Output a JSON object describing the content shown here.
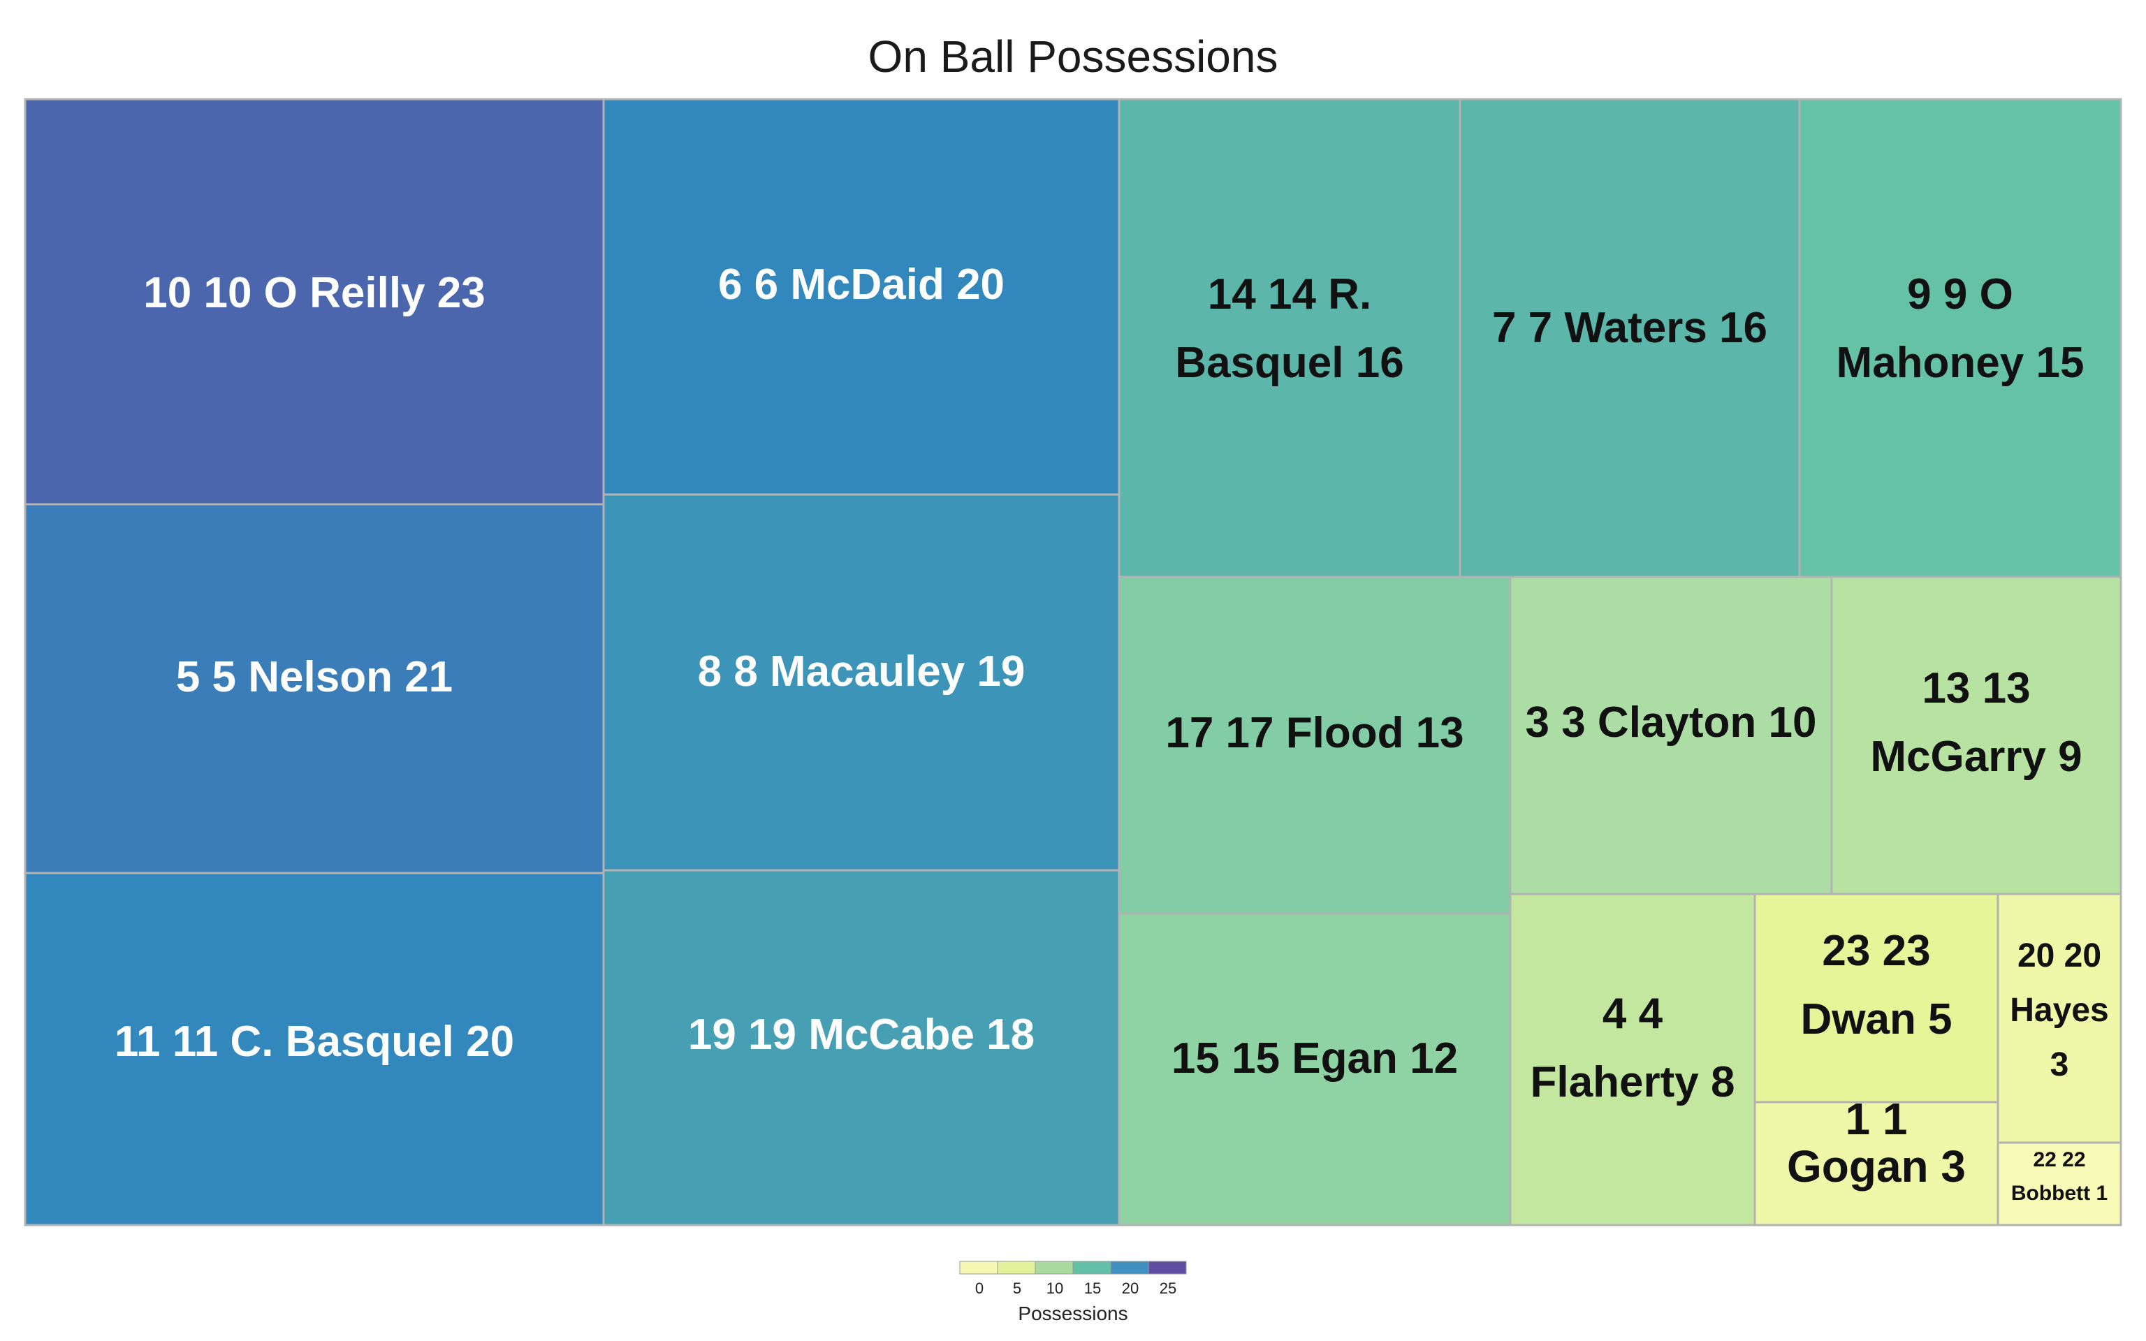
{
  "chart_data": {
    "type": "treemap",
    "title": "On Ball Possessions",
    "value_label": "Possessions",
    "legend": {
      "title": "Possessions",
      "ticks": [
        0,
        5,
        10,
        15,
        20,
        25
      ],
      "placement": "bottom-center",
      "colors": [
        "#f7f7b4",
        "#e3f29a",
        "#a9dba0",
        "#63bfa5",
        "#3f8fc0",
        "#5e4fa2"
      ]
    },
    "items": [
      {
        "label": "10 10  O Reilly 23",
        "value": 23
      },
      {
        "label": "5 5 Nelson 21",
        "value": 21
      },
      {
        "label": "11 11 C. Basquel 20",
        "value": 20
      },
      {
        "label": "6 6 McDaid 20",
        "value": 20
      },
      {
        "label": "8 8 Macauley 19",
        "value": 19
      },
      {
        "label": "19 19 McCabe 18",
        "value": 18
      },
      {
        "label": "14 14 R. Basquel 16",
        "value": 16
      },
      {
        "label": "7 7 Waters 16",
        "value": 16
      },
      {
        "label": "9 9 O Mahoney 15",
        "value": 15
      },
      {
        "label": "17 17 Flood 13",
        "value": 13
      },
      {
        "label": "15 15 Egan 12",
        "value": 12
      },
      {
        "label": "3 3 Clayton 10",
        "value": 10
      },
      {
        "label": "13 13 McGarry 9",
        "value": 9
      },
      {
        "label": "4 4 Flaherty 8",
        "value": 8
      },
      {
        "label": "23 23 Dwan 5",
        "value": 5
      },
      {
        "label": "1 1 Gogan 3",
        "value": 3
      },
      {
        "label": "20 20 Hayes 3",
        "value": 3
      },
      {
        "label": "22 22 Bobbett 1",
        "value": 1
      }
    ]
  }
}
